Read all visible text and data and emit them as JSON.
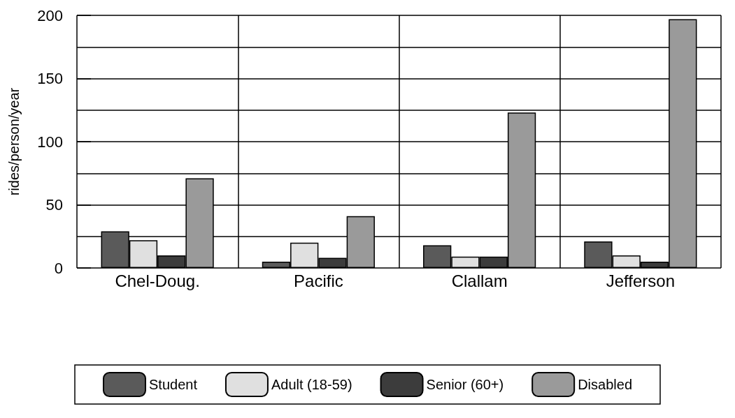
{
  "chart_data": {
    "type": "bar",
    "ylabel": "rides/person/year",
    "categories": [
      "Chel-Doug.",
      "Pacific",
      "Clallam",
      "Jefferson"
    ],
    "series": [
      {
        "name": "Student",
        "color": "#5a5a5a",
        "values": [
          29,
          5,
          18,
          21
        ]
      },
      {
        "name": "Adult (18-59)",
        "color": "#e0e0e0",
        "values": [
          22,
          20,
          9,
          10
        ]
      },
      {
        "name": "Senior (60+)",
        "color": "#3c3c3c",
        "values": [
          10,
          8,
          9,
          5
        ]
      },
      {
        "name": "Disabled",
        "color": "#9a9a9a",
        "values": [
          71,
          41,
          123,
          197
        ]
      }
    ],
    "ylim": [
      0,
      200
    ],
    "yticks": [
      0,
      {
        "value": 25,
        "label": null
      },
      50,
      {
        "value": 75,
        "label": null
      },
      100,
      {
        "value": 125,
        "label": null
      },
      150,
      {
        "value": 175,
        "label": null
      },
      200
    ],
    "grid": true,
    "legend": "bottom"
  }
}
